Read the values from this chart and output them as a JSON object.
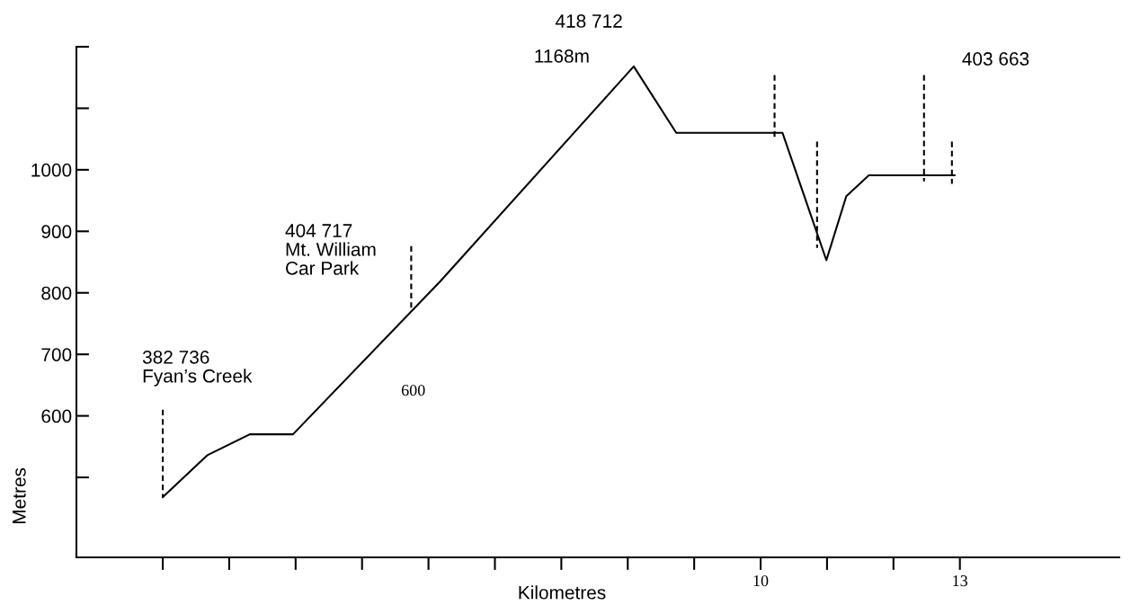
{
  "chart_data": {
    "type": "line",
    "xlabel": "Kilometres",
    "ylabel": "Metres",
    "x": [
      1,
      1.67,
      2.31,
      2.96,
      5.18,
      8.09,
      8.73,
      10.33,
      10.99,
      11.29,
      11.63,
      12.92
    ],
    "series": [
      {
        "color": "#000000",
        "values": [
          468,
          536,
          570,
          570,
          819,
          1168,
          1060,
          1060,
          853,
          957,
          991,
          991
        ]
      },
      {
        "color": "#000000",
        "line_style": "dashed",
        "x": [
          1,
          1,
          null,
          4.74,
          4.74,
          null,
          10.21,
          10.21,
          null,
          10.85,
          10.85,
          null,
          12.46,
          12.46,
          null,
          12.88,
          12.88
        ],
        "values": [
          610,
          468,
          null,
          876,
          776,
          null,
          1154,
          1049,
          null,
          1046,
          873,
          null,
          1154,
          981,
          null,
          1046,
          977
        ]
      }
    ],
    "xlim": [
      -0.3,
      15.4
    ],
    "xticks": [
      {
        "value": 1,
        "label": null
      },
      {
        "value": 2,
        "label": null
      },
      {
        "value": 3,
        "label": null
      },
      {
        "value": 4,
        "label": null
      },
      {
        "value": 5,
        "label": null
      },
      {
        "value": 6,
        "label": null
      },
      {
        "value": 7,
        "label": null
      },
      {
        "value": 8,
        "label": null
      },
      {
        "value": 9,
        "label": null
      },
      10,
      {
        "value": 11,
        "label": null
      },
      {
        "value": 12,
        "label": null
      },
      13
    ],
    "ylim": [
      370,
      1200
    ],
    "yticks": [
      {
        "value": 500,
        "label": null
      },
      600,
      700,
      800,
      900,
      1000,
      {
        "value": 1100,
        "label": null
      },
      {
        "value": 1200,
        "label": null
      }
    ],
    "annotations": [
      "382 736\nFyan’s Creek",
      "404 717\nMt. William\nCar Park",
      "418 712",
      {
        "text": "1168m",
        "x": 8.09,
        "y": 1168
      },
      "403 663",
      "600"
    ],
    "grid": false,
    "legend": false,
    "marker": "none"
  }
}
